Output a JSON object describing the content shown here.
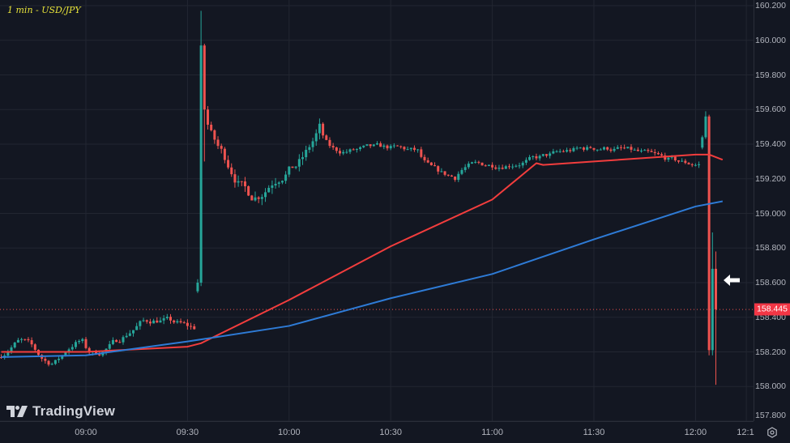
{
  "header": {
    "symbol_label": "1 min - USD/JPY"
  },
  "logo": {
    "text": "TradingView"
  },
  "price_axis": {
    "ticks": [
      "160.200",
      "160.000",
      "159.800",
      "159.600",
      "159.400",
      "159.200",
      "159.000",
      "158.800",
      "158.600",
      "158.400",
      "158.200",
      "158.000",
      "157.800"
    ],
    "last_price": "158.445"
  },
  "time_axis": {
    "ticks": [
      "09:00",
      "09:30",
      "10:00",
      "10:30",
      "11:00",
      "11:30",
      "12:00",
      "12:1"
    ]
  },
  "colors": {
    "background": "#131722",
    "grid": "#222631",
    "up": "#26a69a",
    "down": "#ef5350",
    "ma_fast": "#f23d3d",
    "ma_slow": "#2e7bd6",
    "symbol": "#e6e23a",
    "last_price_badge": "#f23645"
  },
  "chart_data": {
    "type": "candlestick",
    "title": "1 min - USD/JPY",
    "interval": "1 min",
    "symbol": "USD/JPY",
    "xlabel": "",
    "ylabel": "",
    "ylim": [
      157.8,
      160.2
    ],
    "grid": true,
    "x_tick_labels": [
      "09:00",
      "09:30",
      "10:00",
      "10:30",
      "11:00",
      "11:30",
      "12:00",
      "12:1"
    ],
    "y_tick_labels": [
      "160.200",
      "160.000",
      "159.800",
      "159.600",
      "159.400",
      "159.200",
      "159.000",
      "158.800",
      "158.600",
      "158.400",
      "158.200",
      "158.000",
      "157.800"
    ],
    "last_price": 158.445,
    "annotations": [
      "white arrow pointing left at ~158.600 near last candle"
    ],
    "candle_segments": [
      {
        "from": "08:35",
        "to": "09:00",
        "open": 158.17,
        "range": [
          158.13,
          158.3
        ],
        "note": "flat near 158.15-158.28, slight dip to 158.14 at 09:00"
      },
      {
        "from": "09:00",
        "to": "09:33",
        "range": [
          158.14,
          158.4
        ],
        "note": "grind up to 158.40 at ~09:16, consolidate 158.33-158.38"
      },
      {
        "from": "09:33",
        "to": "09:35",
        "note": "spike: 158.55 -> high 160.17, close 159.97"
      },
      {
        "from": "09:35",
        "to": "10:10",
        "range": [
          159.05,
          159.46
        ],
        "note": "fall back, chop 159.05-159.45"
      },
      {
        "from": "10:10",
        "to": "12:02",
        "range": [
          159.18,
          159.45
        ],
        "note": "range trade ~159.25-159.40"
      },
      {
        "from": "12:02",
        "to": "12:04",
        "note": "rise to high 159.59"
      },
      {
        "from": "12:04",
        "to": "12:06",
        "note": "crash: 159.56 -> low 158.18 (intervention)"
      },
      {
        "from": "12:06",
        "to": "12:07",
        "note": "rebound to 158.89, low 158.01, close 158.445"
      }
    ],
    "series": [
      {
        "name": "MA fast (red)",
        "points": [
          [
            "08:35",
            158.2
          ],
          [
            "09:00",
            158.2
          ],
          [
            "09:30",
            158.23
          ],
          [
            "09:34",
            158.25
          ],
          [
            "10:00",
            158.5
          ],
          [
            "10:30",
            158.81
          ],
          [
            "11:00",
            159.08
          ],
          [
            "11:13",
            159.29
          ],
          [
            "11:15",
            159.28
          ],
          [
            "11:30",
            159.3
          ],
          [
            "12:00",
            159.34
          ],
          [
            "12:04",
            159.34
          ],
          [
            "12:08",
            159.31
          ]
        ]
      },
      {
        "name": "MA slow (blue)",
        "points": [
          [
            "08:35",
            158.17
          ],
          [
            "09:00",
            158.18
          ],
          [
            "09:30",
            158.26
          ],
          [
            "10:00",
            158.35
          ],
          [
            "10:30",
            158.51
          ],
          [
            "11:00",
            158.65
          ],
          [
            "11:30",
            158.85
          ],
          [
            "12:00",
            159.04
          ],
          [
            "12:08",
            159.07
          ]
        ]
      }
    ]
  }
}
